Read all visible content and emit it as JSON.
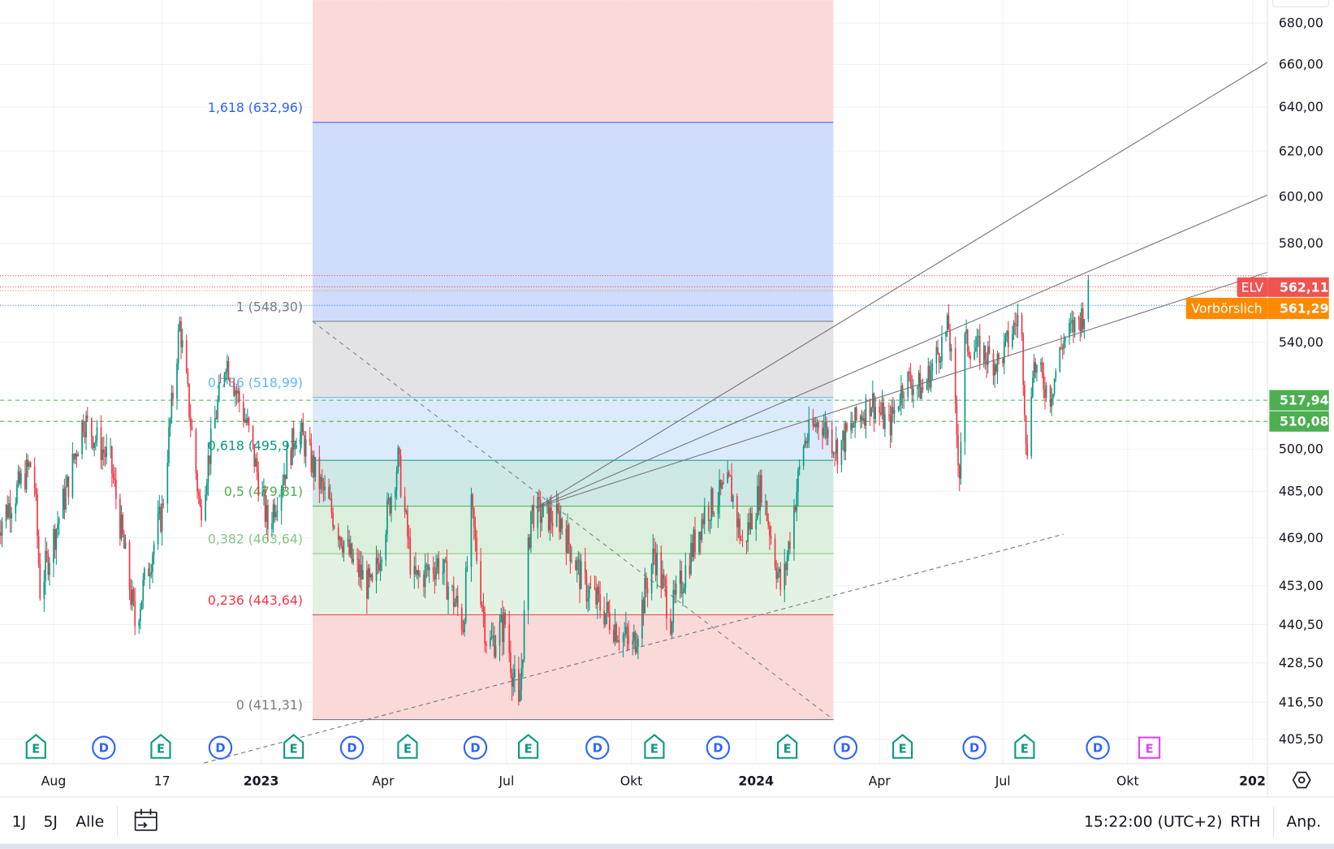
{
  "chart_data": {
    "type": "candlestick",
    "symbol": "ELV",
    "y_scale": "log",
    "ylim": [
      400,
      690
    ],
    "grid": true,
    "price_ticks": [
      "680,00",
      "660,00",
      "640,00",
      "620,00",
      "600,00",
      "580,00",
      "540,00",
      "500,00",
      "485,00",
      "469,00",
      "453,00",
      "440,50",
      "428,50",
      "416,50",
      "405,50"
    ],
    "price_tick_values": [
      680,
      660,
      640,
      620,
      600,
      580,
      540,
      500,
      485,
      469,
      453,
      440.5,
      428.5,
      416.5,
      405.5
    ],
    "time_ticks": [
      {
        "label": "Aug",
        "date": "2022-08-01",
        "bold": false
      },
      {
        "label": "17",
        "date": "2022-10-20",
        "bold": false
      },
      {
        "label": "2023",
        "date": "2023-01-01",
        "bold": true
      },
      {
        "label": "Apr",
        "date": "2023-04-01",
        "bold": false
      },
      {
        "label": "Jul",
        "date": "2023-07-01",
        "bold": false
      },
      {
        "label": "Okt",
        "date": "2023-10-01",
        "bold": false
      },
      {
        "label": "2024",
        "date": "2024-01-01",
        "bold": true
      },
      {
        "label": "Apr",
        "date": "2024-04-01",
        "bold": false
      },
      {
        "label": "Jul",
        "date": "2024-07-01",
        "bold": false
      },
      {
        "label": "Okt",
        "date": "2024-10-01",
        "bold": false
      },
      {
        "label": "202",
        "date": "2025-01-01",
        "bold": true
      }
    ],
    "close_path": [
      [
        "2022-06-21",
        473
      ],
      [
        "2022-07-17",
        496
      ],
      [
        "2022-07-22",
        452
      ],
      [
        "2022-08-12",
        488
      ],
      [
        "2022-08-23",
        511
      ],
      [
        "2022-09-12",
        495
      ],
      [
        "2022-09-30",
        441
      ],
      [
        "2022-10-20",
        478
      ],
      [
        "2022-11-02",
        547
      ],
      [
        "2022-11-17",
        478
      ],
      [
        "2022-12-06",
        534
      ],
      [
        "2022-12-22",
        508
      ],
      [
        "2023-01-06",
        473
      ],
      [
        "2023-01-28",
        508
      ],
      [
        "2023-02-13",
        488
      ],
      [
        "2023-03-09",
        461
      ],
      [
        "2023-03-24",
        451
      ],
      [
        "2023-04-12",
        496
      ],
      [
        "2023-04-23",
        454
      ],
      [
        "2023-05-12",
        461
      ],
      [
        "2023-05-30",
        441
      ],
      [
        "2023-06-05",
        478
      ],
      [
        "2023-06-17",
        433
      ],
      [
        "2023-06-30",
        441
      ],
      [
        "2023-07-10",
        413
      ],
      [
        "2023-07-19",
        478
      ],
      [
        "2023-08-10",
        475
      ],
      [
        "2023-08-26",
        454
      ],
      [
        "2023-10-02",
        433
      ],
      [
        "2023-10-18",
        464
      ],
      [
        "2023-10-30",
        443
      ],
      [
        "2023-11-24",
        478
      ],
      [
        "2023-12-13",
        487
      ],
      [
        "2023-12-22",
        466
      ],
      [
        "2024-01-05",
        487
      ],
      [
        "2024-01-20",
        450
      ],
      [
        "2024-02-05",
        502
      ],
      [
        "2024-02-17",
        511
      ],
      [
        "2024-03-01",
        500
      ],
      [
        "2024-03-26",
        518
      ],
      [
        "2024-04-08",
        508
      ],
      [
        "2024-04-20",
        526
      ],
      [
        "2024-05-03",
        522
      ],
      [
        "2024-05-22",
        546
      ],
      [
        "2024-05-30",
        492
      ],
      [
        "2024-06-03",
        540
      ],
      [
        "2024-06-28",
        532
      ],
      [
        "2024-07-14",
        552
      ],
      [
        "2024-07-19",
        495
      ],
      [
        "2024-07-23",
        532
      ],
      [
        "2024-08-05",
        520
      ],
      [
        "2024-08-14",
        540
      ],
      [
        "2024-08-30",
        552
      ],
      [
        "2024-09-03",
        562.11
      ]
    ],
    "fibonacci": {
      "start_date": "2023-02-08",
      "end_date": "2024-02-27",
      "levels": [
        {
          "ratio": "1,618",
          "price": 632.96,
          "label": "1,618 (632,96)",
          "color": "#2962ff",
          "fill": "#d0dcfb"
        },
        {
          "ratio": "1",
          "price": 548.3,
          "label": "1 (548,30)",
          "color": "#787b86",
          "fill": "#e3e3e5"
        },
        {
          "ratio": "0,786",
          "price": 518.99,
          "label": "0,786 (518,99)",
          "color": "#64b5f6",
          "fill": "#dcebfb"
        },
        {
          "ratio": "0,618",
          "price": 495.97,
          "label": "0,618 (495,97)",
          "color": "#089981",
          "fill": "#cde8e5"
        },
        {
          "ratio": "0,5",
          "price": 479.81,
          "label": "0,5 (479,81)",
          "color": "#4caf50",
          "fill": "#dcefdc"
        },
        {
          "ratio": "0,382",
          "price": 463.64,
          "label": "0,382 (463,64)",
          "color": "#81c784",
          "fill": "#e4f2e4"
        },
        {
          "ratio": "0,236",
          "price": 443.64,
          "label": "0,236 (443,64)",
          "color": "#f23645",
          "fill": "#fad9d9"
        },
        {
          "ratio": "0",
          "price": 411.31,
          "label": "0 (411,31)",
          "color": "#787b86",
          "fill": null
        }
      ],
      "top_fill": "#fad9d9"
    },
    "horizontal_lines": [
      {
        "price": 517.94,
        "label": "517,94",
        "color": "#4caf50",
        "style": "dashed"
      },
      {
        "price": 510.08,
        "label": "510,08",
        "color": "#4caf50",
        "style": "dashed"
      }
    ],
    "price_labels": {
      "last": {
        "name": "ELV",
        "value": "562,11",
        "price": 562.11,
        "color": "#f05350"
      },
      "premarket": {
        "name": "Vorbörslich",
        "value": "561,29",
        "price": 561.29,
        "color": "#ff8a00"
      }
    },
    "events": [
      {
        "type": "E",
        "date": "2022-07-19"
      },
      {
        "type": "D",
        "date": "2022-09-07"
      },
      {
        "type": "E",
        "date": "2022-10-19"
      },
      {
        "type": "D",
        "date": "2022-12-02"
      },
      {
        "type": "E",
        "date": "2023-01-25"
      },
      {
        "type": "D",
        "date": "2023-03-09"
      },
      {
        "type": "E",
        "date": "2023-04-19"
      },
      {
        "type": "D",
        "date": "2023-06-08"
      },
      {
        "type": "E",
        "date": "2023-07-17"
      },
      {
        "type": "D",
        "date": "2023-09-06"
      },
      {
        "type": "E",
        "date": "2023-10-18"
      },
      {
        "type": "D",
        "date": "2023-12-04"
      },
      {
        "type": "E",
        "date": "2024-01-24"
      },
      {
        "type": "D",
        "date": "2024-03-07"
      },
      {
        "type": "E",
        "date": "2024-04-18"
      },
      {
        "type": "D",
        "date": "2024-06-10"
      },
      {
        "type": "E",
        "date": "2024-07-17"
      },
      {
        "type": "D",
        "date": "2024-09-09"
      },
      {
        "type": "E",
        "date": "2024-10-17",
        "upcoming": true
      }
    ],
    "colors": {
      "up": "#089981",
      "down": "#f23645",
      "earnings": "#089981",
      "dividend": "#2962ff",
      "upcoming_earnings": "#e040fb"
    }
  },
  "toolbar": {
    "ranges": [
      "1J",
      "5J",
      "Alle"
    ],
    "goto_date_icon": "calendar-goto-icon",
    "time": "15:22:00 (UTC+2)",
    "session": "RTH",
    "adjust": "Anp."
  },
  "axis_settings_icon": "gear-icon"
}
